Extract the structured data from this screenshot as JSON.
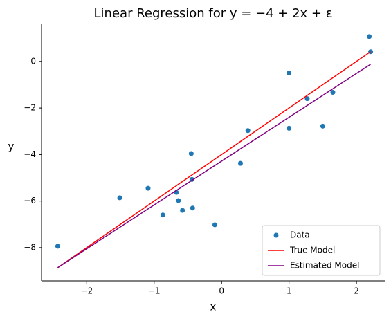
{
  "chart_data": {
    "type": "scatter",
    "title": "Linear Regression for y = −4 + 2x + ε",
    "x_label": "x",
    "y_label": "y",
    "xlim": [
      -2.67,
      2.43
    ],
    "ylim": [
      -9.43,
      1.6
    ],
    "xticks": [
      {
        "value": -2,
        "label": "−2"
      },
      {
        "value": -1,
        "label": "−1"
      },
      0,
      1,
      2
    ],
    "yticks": [
      {
        "value": -8,
        "label": "−8"
      },
      {
        "value": -6,
        "label": "−6"
      },
      {
        "value": -4,
        "label": "−4"
      },
      {
        "value": -2,
        "label": "−2"
      },
      0
    ],
    "legend": "lower right",
    "series": [
      {
        "name": "Data",
        "type": "scatter",
        "color": "#1f77b4",
        "x": [
          -2.43,
          -1.51,
          -1.09,
          -0.87,
          -0.67,
          -0.64,
          -0.58,
          -0.45,
          -0.44,
          -0.43,
          -0.1,
          0.28,
          0.39,
          1.0,
          1.0,
          1.27,
          1.5,
          1.65,
          2.19,
          2.21
        ],
        "values": [
          -7.94,
          -5.86,
          -5.45,
          -6.6,
          -5.63,
          -5.98,
          -6.4,
          -3.96,
          -5.07,
          -6.3,
          -7.02,
          -4.38,
          -2.97,
          -0.5,
          -2.87,
          -1.6,
          -2.78,
          -1.33,
          1.07,
          0.42
        ]
      },
      {
        "name": "True Model",
        "type": "line",
        "color": "#ff0000",
        "x": [
          -2.43,
          2.21
        ],
        "values": [
          -8.86,
          0.42
        ]
      },
      {
        "name": "Estimated Model",
        "type": "line",
        "color": "#800080",
        "x": [
          -2.43,
          2.21
        ],
        "values": [
          -8.86,
          -0.12
        ]
      }
    ]
  }
}
